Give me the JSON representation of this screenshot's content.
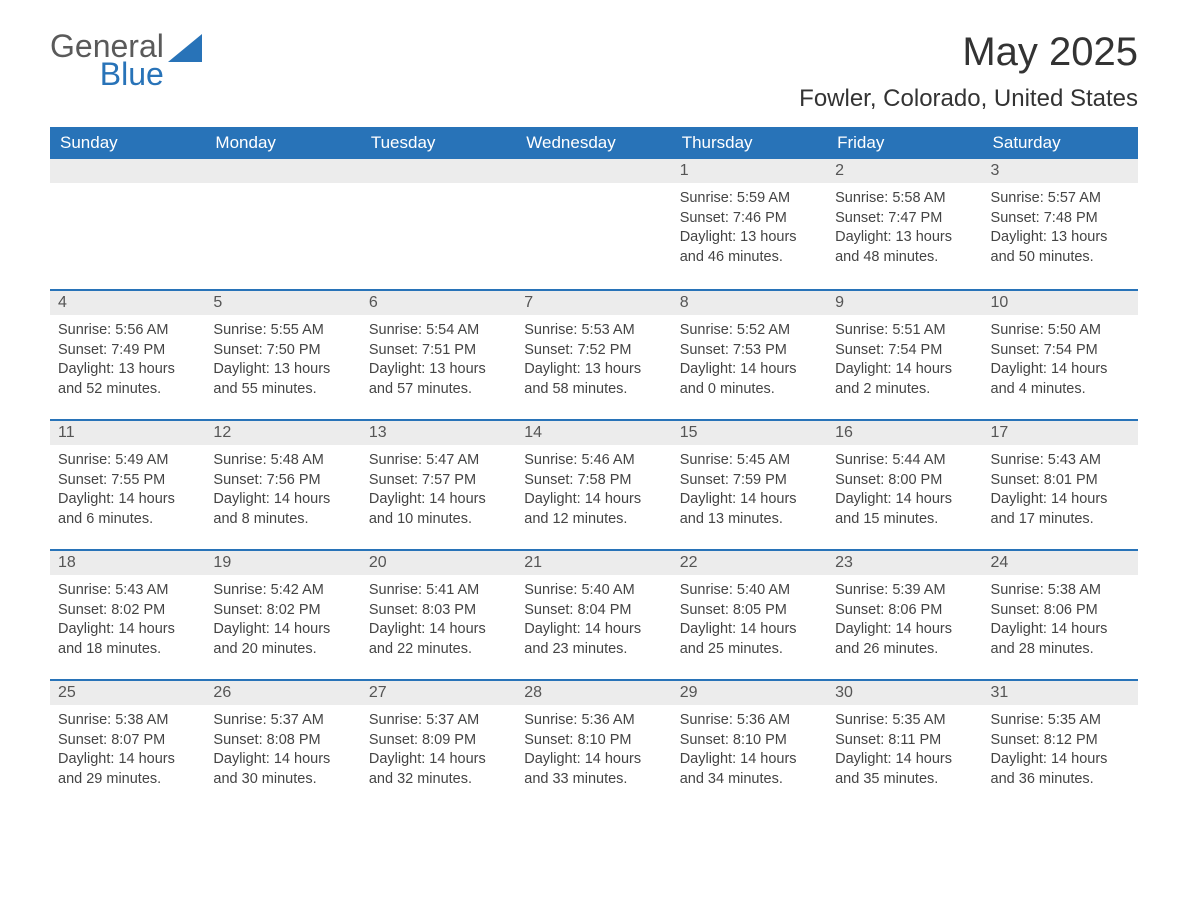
{
  "brand": {
    "word1": "General",
    "word2": "Blue",
    "accent_color": "#2873b8"
  },
  "title": "May 2025",
  "location": "Fowler, Colorado, United States",
  "columns": [
    "Sunday",
    "Monday",
    "Tuesday",
    "Wednesday",
    "Thursday",
    "Friday",
    "Saturday"
  ],
  "header_bg": "#2873b8",
  "header_fg": "#ffffff",
  "daynum_bg": "#ececec",
  "border_color": "#2873b8",
  "text_color": "#444444",
  "weeks": [
    [
      null,
      null,
      null,
      null,
      {
        "n": "1",
        "sunrise": "Sunrise: 5:59 AM",
        "sunset": "Sunset: 7:46 PM",
        "day1": "Daylight: 13 hours",
        "day2": "and 46 minutes."
      },
      {
        "n": "2",
        "sunrise": "Sunrise: 5:58 AM",
        "sunset": "Sunset: 7:47 PM",
        "day1": "Daylight: 13 hours",
        "day2": "and 48 minutes."
      },
      {
        "n": "3",
        "sunrise": "Sunrise: 5:57 AM",
        "sunset": "Sunset: 7:48 PM",
        "day1": "Daylight: 13 hours",
        "day2": "and 50 minutes."
      }
    ],
    [
      {
        "n": "4",
        "sunrise": "Sunrise: 5:56 AM",
        "sunset": "Sunset: 7:49 PM",
        "day1": "Daylight: 13 hours",
        "day2": "and 52 minutes."
      },
      {
        "n": "5",
        "sunrise": "Sunrise: 5:55 AM",
        "sunset": "Sunset: 7:50 PM",
        "day1": "Daylight: 13 hours",
        "day2": "and 55 minutes."
      },
      {
        "n": "6",
        "sunrise": "Sunrise: 5:54 AM",
        "sunset": "Sunset: 7:51 PM",
        "day1": "Daylight: 13 hours",
        "day2": "and 57 minutes."
      },
      {
        "n": "7",
        "sunrise": "Sunrise: 5:53 AM",
        "sunset": "Sunset: 7:52 PM",
        "day1": "Daylight: 13 hours",
        "day2": "and 58 minutes."
      },
      {
        "n": "8",
        "sunrise": "Sunrise: 5:52 AM",
        "sunset": "Sunset: 7:53 PM",
        "day1": "Daylight: 14 hours",
        "day2": "and 0 minutes."
      },
      {
        "n": "9",
        "sunrise": "Sunrise: 5:51 AM",
        "sunset": "Sunset: 7:54 PM",
        "day1": "Daylight: 14 hours",
        "day2": "and 2 minutes."
      },
      {
        "n": "10",
        "sunrise": "Sunrise: 5:50 AM",
        "sunset": "Sunset: 7:54 PM",
        "day1": "Daylight: 14 hours",
        "day2": "and 4 minutes."
      }
    ],
    [
      {
        "n": "11",
        "sunrise": "Sunrise: 5:49 AM",
        "sunset": "Sunset: 7:55 PM",
        "day1": "Daylight: 14 hours",
        "day2": "and 6 minutes."
      },
      {
        "n": "12",
        "sunrise": "Sunrise: 5:48 AM",
        "sunset": "Sunset: 7:56 PM",
        "day1": "Daylight: 14 hours",
        "day2": "and 8 minutes."
      },
      {
        "n": "13",
        "sunrise": "Sunrise: 5:47 AM",
        "sunset": "Sunset: 7:57 PM",
        "day1": "Daylight: 14 hours",
        "day2": "and 10 minutes."
      },
      {
        "n": "14",
        "sunrise": "Sunrise: 5:46 AM",
        "sunset": "Sunset: 7:58 PM",
        "day1": "Daylight: 14 hours",
        "day2": "and 12 minutes."
      },
      {
        "n": "15",
        "sunrise": "Sunrise: 5:45 AM",
        "sunset": "Sunset: 7:59 PM",
        "day1": "Daylight: 14 hours",
        "day2": "and 13 minutes."
      },
      {
        "n": "16",
        "sunrise": "Sunrise: 5:44 AM",
        "sunset": "Sunset: 8:00 PM",
        "day1": "Daylight: 14 hours",
        "day2": "and 15 minutes."
      },
      {
        "n": "17",
        "sunrise": "Sunrise: 5:43 AM",
        "sunset": "Sunset: 8:01 PM",
        "day1": "Daylight: 14 hours",
        "day2": "and 17 minutes."
      }
    ],
    [
      {
        "n": "18",
        "sunrise": "Sunrise: 5:43 AM",
        "sunset": "Sunset: 8:02 PM",
        "day1": "Daylight: 14 hours",
        "day2": "and 18 minutes."
      },
      {
        "n": "19",
        "sunrise": "Sunrise: 5:42 AM",
        "sunset": "Sunset: 8:02 PM",
        "day1": "Daylight: 14 hours",
        "day2": "and 20 minutes."
      },
      {
        "n": "20",
        "sunrise": "Sunrise: 5:41 AM",
        "sunset": "Sunset: 8:03 PM",
        "day1": "Daylight: 14 hours",
        "day2": "and 22 minutes."
      },
      {
        "n": "21",
        "sunrise": "Sunrise: 5:40 AM",
        "sunset": "Sunset: 8:04 PM",
        "day1": "Daylight: 14 hours",
        "day2": "and 23 minutes."
      },
      {
        "n": "22",
        "sunrise": "Sunrise: 5:40 AM",
        "sunset": "Sunset: 8:05 PM",
        "day1": "Daylight: 14 hours",
        "day2": "and 25 minutes."
      },
      {
        "n": "23",
        "sunrise": "Sunrise: 5:39 AM",
        "sunset": "Sunset: 8:06 PM",
        "day1": "Daylight: 14 hours",
        "day2": "and 26 minutes."
      },
      {
        "n": "24",
        "sunrise": "Sunrise: 5:38 AM",
        "sunset": "Sunset: 8:06 PM",
        "day1": "Daylight: 14 hours",
        "day2": "and 28 minutes."
      }
    ],
    [
      {
        "n": "25",
        "sunrise": "Sunrise: 5:38 AM",
        "sunset": "Sunset: 8:07 PM",
        "day1": "Daylight: 14 hours",
        "day2": "and 29 minutes."
      },
      {
        "n": "26",
        "sunrise": "Sunrise: 5:37 AM",
        "sunset": "Sunset: 8:08 PM",
        "day1": "Daylight: 14 hours",
        "day2": "and 30 minutes."
      },
      {
        "n": "27",
        "sunrise": "Sunrise: 5:37 AM",
        "sunset": "Sunset: 8:09 PM",
        "day1": "Daylight: 14 hours",
        "day2": "and 32 minutes."
      },
      {
        "n": "28",
        "sunrise": "Sunrise: 5:36 AM",
        "sunset": "Sunset: 8:10 PM",
        "day1": "Daylight: 14 hours",
        "day2": "and 33 minutes."
      },
      {
        "n": "29",
        "sunrise": "Sunrise: 5:36 AM",
        "sunset": "Sunset: 8:10 PM",
        "day1": "Daylight: 14 hours",
        "day2": "and 34 minutes."
      },
      {
        "n": "30",
        "sunrise": "Sunrise: 5:35 AM",
        "sunset": "Sunset: 8:11 PM",
        "day1": "Daylight: 14 hours",
        "day2": "and 35 minutes."
      },
      {
        "n": "31",
        "sunrise": "Sunrise: 5:35 AM",
        "sunset": "Sunset: 8:12 PM",
        "day1": "Daylight: 14 hours",
        "day2": "and 36 minutes."
      }
    ]
  ]
}
